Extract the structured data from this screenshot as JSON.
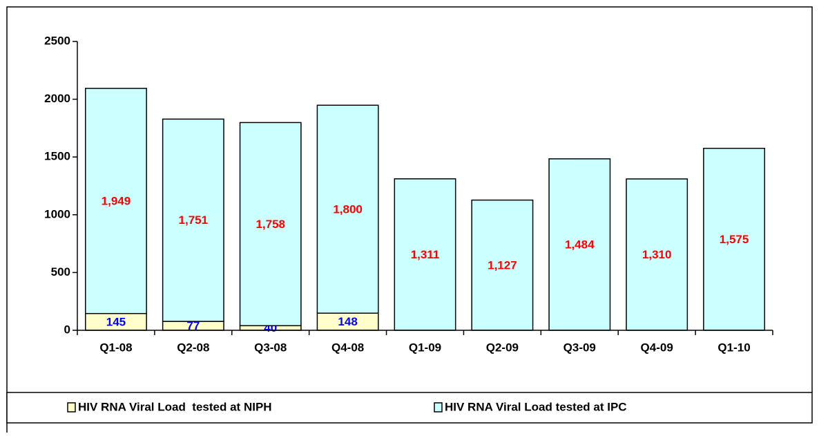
{
  "chart_data": {
    "type": "stacked_bar",
    "categories": [
      "Q1-08",
      "Q2-08",
      "Q3-08",
      "Q4-08",
      "Q1-09",
      "Q2-09",
      "Q3-09",
      "Q4-09",
      "Q1-10"
    ],
    "series": [
      {
        "name": "HIV RNA Viral Load  tested at NIPH",
        "color": "#ffffcc",
        "label_color": "#0000ff",
        "values": [
          145,
          77,
          40,
          148,
          0,
          0,
          0,
          0,
          0
        ]
      },
      {
        "name": "HIV RNA Viral Load tested at IPC",
        "color": "#ccffff",
        "label_color": "#ff0000",
        "values": [
          1949,
          1751,
          1758,
          1800,
          1311,
          1127,
          1484,
          1310,
          1575
        ],
        "value_labels": [
          "1,949",
          "1,751",
          "1,758",
          "1,800",
          "1,311",
          "1,127",
          "1,484",
          "1,310",
          "1,575"
        ]
      }
    ],
    "ylim": [
      0,
      2500
    ],
    "yticks": [
      0,
      500,
      1000,
      1500,
      2000,
      2500
    ],
    "grid": false,
    "legend": "bottom"
  }
}
